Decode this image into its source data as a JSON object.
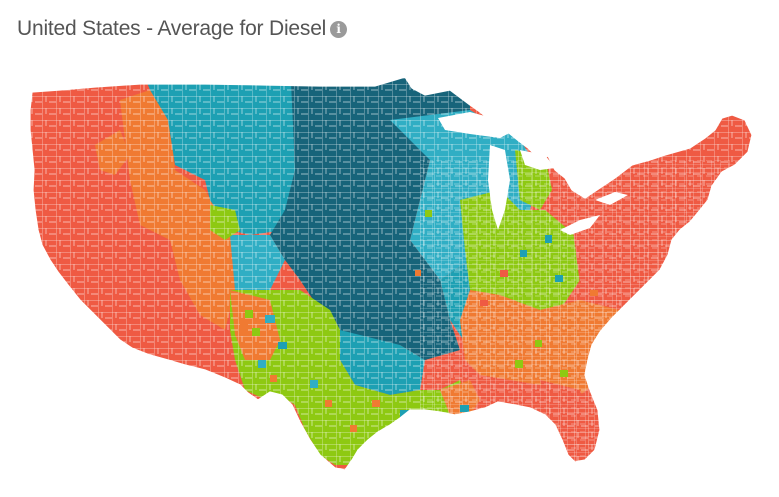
{
  "header": {
    "title": "United States - Average for Diesel",
    "info_icon": "info-icon"
  },
  "map": {
    "region": "United States",
    "fuel": "Diesel",
    "palette": {
      "pacific": "#ef5a43",
      "mountain_orange": "#f07a32",
      "teal": "#1da0b3",
      "dark_teal": "#17647a",
      "light_teal": "#30aec4",
      "green": "#8ec912",
      "border": "#ffffff"
    }
  }
}
